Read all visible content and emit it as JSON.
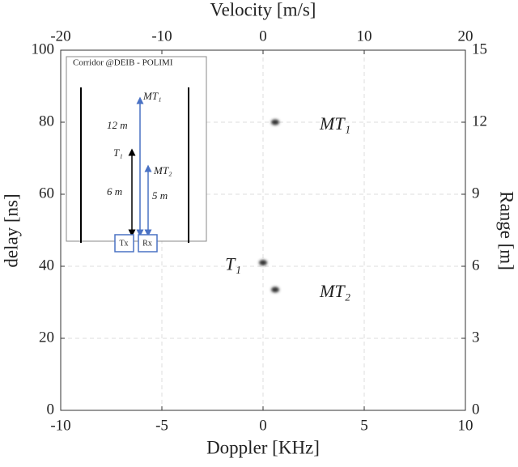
{
  "chart_data": {
    "type": "scatter",
    "x_label": "Doppler [KHz]",
    "y_label": "delay [ns]",
    "x2_label": "Velocity [m/s]",
    "y2_label": "Range [m]",
    "xlim": [
      -10,
      10
    ],
    "xticks": [
      -10,
      -5,
      0,
      5,
      10
    ],
    "ylim": [
      0,
      100
    ],
    "yticks": [
      0,
      20,
      40,
      60,
      80,
      100
    ],
    "x2lim": [
      -20,
      20
    ],
    "x2ticks": [
      -20,
      -10,
      0,
      10,
      20
    ],
    "y2lim": [
      0,
      15
    ],
    "y2ticks": [
      0,
      3,
      6,
      9,
      12,
      15
    ],
    "grid": true,
    "series": [
      {
        "color": "#333333",
        "x": [
          0.6,
          0,
          0.6
        ],
        "values": [
          80,
          41,
          33.5
        ],
        "labels": [
          "MT₁",
          "T₁",
          "MT₂"
        ]
      }
    ]
  },
  "inset": {
    "title": "Corridor @DEIB - POLIMI",
    "mt1": "MT₁",
    "d12": "12 m",
    "t1": "T₁",
    "d6": "6 m",
    "mt2": "MT₂",
    "d5": "5 m",
    "tx": "Tx",
    "rx": "Rx"
  }
}
